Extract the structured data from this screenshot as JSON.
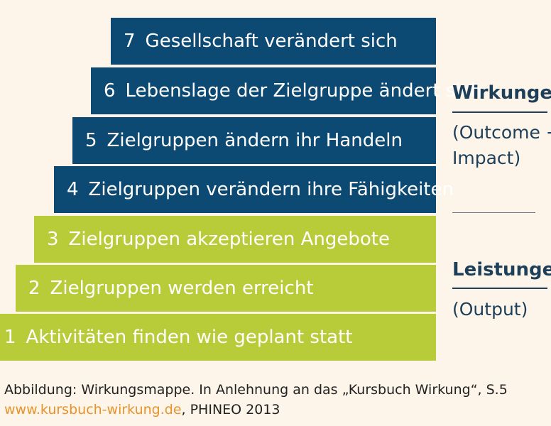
{
  "stairs": [
    {
      "num": "7",
      "text": "Gesellschaft verändert sich"
    },
    {
      "num": "6",
      "text": "Lebenslage der Zielgruppe ändert sich"
    },
    {
      "num": "5",
      "text": "Zielgruppen ändern ihr Handeln"
    },
    {
      "num": "4",
      "text": "Zielgruppen verändern ihre Fähigkeiten"
    },
    {
      "num": "3",
      "text": "Zielgruppen akzeptieren Angebote"
    },
    {
      "num": "2",
      "text": "Zielgruppen werden erreicht"
    },
    {
      "num": "1",
      "text": "Aktivitäten finden wie geplant statt"
    }
  ],
  "wirkungen": {
    "heading": "Wirkungen",
    "line1": "(Outcome +",
    "line2": "Impact)"
  },
  "leistungen": {
    "heading": "Leistungen",
    "line1": "(Output)"
  },
  "caption": {
    "line1": "Abbildung: Wirkungsmappe. In Anlehnung an das „Kursbuch Wirkung“, S.5",
    "link": "www.kursbuch-wirkung.de",
    "line2_rest": ", PHINEO 2013"
  },
  "colors": {
    "background": "#fdf5ea",
    "impact_blue": "#0c4a73",
    "output_green": "#b8cc3a",
    "text_dark": "#1e3f5a",
    "link_orange": "#e8922a"
  }
}
